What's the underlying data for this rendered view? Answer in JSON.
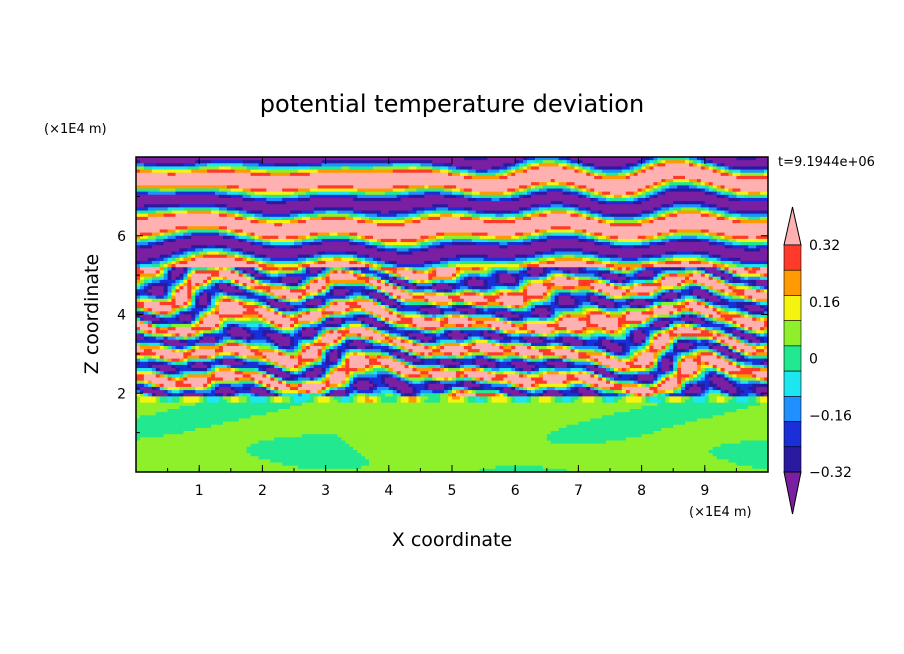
{
  "chart_data": {
    "type": "heatmap",
    "title": "potential temperature deviation",
    "xlabel": "X coordinate",
    "ylabel": "Z coordinate",
    "x_unit": "(×1E4 m)",
    "y_unit": "(×1E4 m)",
    "time_label": "t=9.1944e+06",
    "xlim": [
      0,
      10
    ],
    "ylim": [
      0,
      8
    ],
    "x_ticks": [
      "1",
      "2",
      "3",
      "4",
      "5",
      "6",
      "7",
      "8",
      "9"
    ],
    "y_ticks": [
      "2",
      "4",
      "6"
    ],
    "colorbar": {
      "tick_labels": [
        "0.32",
        "0.16",
        "0",
        "−0.16",
        "−0.32"
      ],
      "levels": [
        -0.4,
        -0.32,
        -0.24,
        -0.16,
        -0.08,
        0,
        0.08,
        0.16,
        0.24,
        0.32,
        0.4
      ],
      "colors": [
        "#7b1fa2",
        "#2a1aa0",
        "#1a2fd8",
        "#1e90ff",
        "#1ee6f0",
        "#22e890",
        "#8ef02a",
        "#f4f410",
        "#ff9a00",
        "#ff3a2a",
        "#ffb0b0"
      ],
      "extend": "both"
    },
    "layers": [
      {
        "z_range": [
          0,
          1.9
        ],
        "pattern": "smooth convective cells",
        "dominant_values": [
          0.0,
          0.06
        ]
      },
      {
        "z_range": [
          1.9,
          5.2
        ],
        "pattern": "turbulent fine-scale bands",
        "dominant_values": [
          -0.4,
          0.4
        ]
      },
      {
        "z_range": [
          5.2,
          8
        ],
        "pattern": "alternating horizontal bands",
        "dominant_values": [
          -0.4,
          0.4
        ]
      }
    ]
  }
}
